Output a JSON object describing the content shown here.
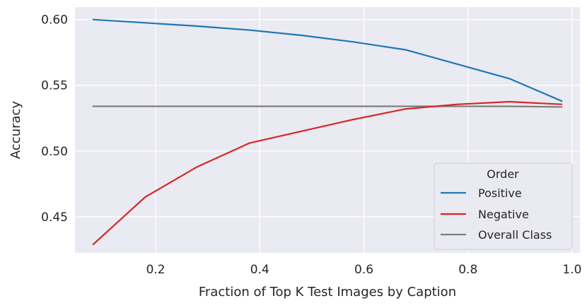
{
  "chart_data": {
    "type": "line",
    "title": "",
    "xlabel": "Fraction of Top K Test Images by Caption",
    "ylabel": "Accuracy",
    "xlim": [
      0.045,
      1.015
    ],
    "ylim": [
      0.4225,
      0.6095
    ],
    "xticks": [
      0.2,
      0.4,
      0.6,
      0.8,
      1.0
    ],
    "xtick_labels": [
      "0.2",
      "0.4",
      "0.6",
      "0.8",
      "1.0"
    ],
    "yticks": [
      0.45,
      0.5,
      0.55,
      0.6
    ],
    "ytick_labels": [
      "0.45",
      "0.50",
      "0.55",
      "0.60"
    ],
    "grid": true,
    "legend": {
      "title": "Order",
      "placement": "lower-right"
    },
    "x": [
      0.08,
      0.18,
      0.28,
      0.38,
      0.48,
      0.58,
      0.68,
      0.78,
      0.88,
      0.98
    ],
    "series": [
      {
        "name": "Positive",
        "color": "#1f77b4",
        "values": [
          0.6,
          0.5975,
          0.595,
          0.592,
          0.588,
          0.583,
          0.577,
          0.566,
          0.555,
          0.538
        ]
      },
      {
        "name": "Negative",
        "color": "#d62728",
        "values": [
          0.429,
          0.465,
          0.488,
          0.506,
          0.515,
          0.524,
          0.532,
          0.5355,
          0.5375,
          0.5355
        ]
      },
      {
        "name": "Overall Class",
        "color": "#7f7f7f",
        "values": [
          0.534,
          0.534,
          0.534,
          0.534,
          0.534,
          0.534,
          0.534,
          0.534,
          0.534,
          0.5335
        ]
      }
    ]
  }
}
